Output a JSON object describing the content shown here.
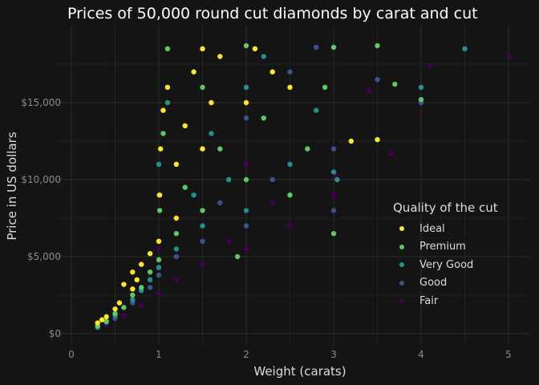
{
  "chart_data": {
    "type": "scatter",
    "title": "Prices of 50,000 round cut diamonds by carat and cut",
    "xlabel": "Weight (carats)",
    "ylabel": "Price in US dollars",
    "xlim": [
      -0.2,
      5.2
    ],
    "ylim": [
      -800,
      20000
    ],
    "x_ticks": [
      0,
      1,
      2,
      3,
      4,
      5
    ],
    "x_tick_labels": [
      "0",
      "1",
      "2",
      "3",
      "4",
      "5"
    ],
    "y_ticks": [
      0,
      5000,
      10000,
      15000
    ],
    "y_tick_labels": [
      "$0",
      "$5,000",
      "$10,000",
      "$15,000"
    ],
    "grid": true,
    "legend": {
      "title": "Quality of the cut",
      "placement": "right-inside"
    },
    "series": [
      {
        "name": "Fair",
        "color": "#440154",
        "points": [
          [
            0.4,
            600
          ],
          [
            0.6,
            1200
          ],
          [
            0.8,
            1800
          ],
          [
            1.0,
            2600
          ],
          [
            1.0,
            5500
          ],
          [
            1.2,
            3500
          ],
          [
            1.5,
            4500
          ],
          [
            1.5,
            8000
          ],
          [
            1.8,
            6000
          ],
          [
            2.0,
            5500
          ],
          [
            2.0,
            11000
          ],
          [
            2.3,
            8500
          ],
          [
            2.5,
            7000
          ],
          [
            3.0,
            9000
          ],
          [
            3.02,
            10300
          ],
          [
            3.4,
            15800
          ],
          [
            3.65,
            11700
          ],
          [
            4.1,
            17400
          ],
          [
            4.5,
            18500
          ],
          [
            5.01,
            18000
          ]
        ]
      },
      {
        "name": "Good",
        "color": "#3b528b",
        "points": [
          [
            0.3,
            400
          ],
          [
            0.5,
            1000
          ],
          [
            0.7,
            2000
          ],
          [
            0.9,
            3000
          ],
          [
            1.0,
            3800
          ],
          [
            1.0,
            9000
          ],
          [
            1.2,
            5000
          ],
          [
            1.5,
            6000
          ],
          [
            1.5,
            12000
          ],
          [
            1.7,
            8500
          ],
          [
            2.0,
            7000
          ],
          [
            2.0,
            14000
          ],
          [
            2.3,
            10000
          ],
          [
            2.5,
            17000
          ],
          [
            2.8,
            18600
          ],
          [
            3.0,
            8000
          ],
          [
            3.0,
            12000
          ],
          [
            3.5,
            16500
          ],
          [
            4.0,
            15000
          ]
        ]
      },
      {
        "name": "Very Good",
        "color": "#21918c",
        "points": [
          [
            0.3,
            450
          ],
          [
            0.4,
            750
          ],
          [
            0.5,
            1200
          ],
          [
            0.7,
            2200
          ],
          [
            0.8,
            2800
          ],
          [
            0.9,
            3500
          ],
          [
            1.0,
            4300
          ],
          [
            1.0,
            11000
          ],
          [
            1.1,
            15000
          ],
          [
            1.2,
            5500
          ],
          [
            1.4,
            9000
          ],
          [
            1.5,
            7000
          ],
          [
            1.6,
            13000
          ],
          [
            1.8,
            10000
          ],
          [
            2.0,
            8000
          ],
          [
            2.0,
            16000
          ],
          [
            2.2,
            18000
          ],
          [
            2.5,
            11000
          ],
          [
            2.8,
            14500
          ],
          [
            3.0,
            10500
          ],
          [
            3.04,
            10000
          ],
          [
            4.0,
            16000
          ],
          [
            4.5,
            18500
          ]
        ]
      },
      {
        "name": "Premium",
        "color": "#5ec962",
        "points": [
          [
            0.3,
            500
          ],
          [
            0.4,
            800
          ],
          [
            0.5,
            1300
          ],
          [
            0.6,
            1700
          ],
          [
            0.7,
            2500
          ],
          [
            0.8,
            3000
          ],
          [
            0.9,
            4000
          ],
          [
            1.0,
            4800
          ],
          [
            1.01,
            8000
          ],
          [
            1.05,
            13000
          ],
          [
            1.1,
            18500
          ],
          [
            1.2,
            6500
          ],
          [
            1.3,
            9500
          ],
          [
            1.5,
            8000
          ],
          [
            1.5,
            16000
          ],
          [
            1.7,
            12000
          ],
          [
            1.9,
            5000
          ],
          [
            2.0,
            10000
          ],
          [
            2.0,
            18700
          ],
          [
            2.2,
            14000
          ],
          [
            2.5,
            9000
          ],
          [
            2.7,
            12000
          ],
          [
            2.9,
            16000
          ],
          [
            3.0,
            6500
          ],
          [
            3.0,
            18600
          ],
          [
            3.5,
            18700
          ],
          [
            3.7,
            16200
          ],
          [
            4.0,
            15200
          ]
        ]
      },
      {
        "name": "Ideal",
        "color": "#fde725",
        "points": [
          [
            0.3,
            700
          ],
          [
            0.35,
            900
          ],
          [
            0.4,
            1100
          ],
          [
            0.5,
            1600
          ],
          [
            0.55,
            2000
          ],
          [
            0.6,
            3200
          ],
          [
            0.7,
            2900
          ],
          [
            0.7,
            4000
          ],
          [
            0.75,
            3500
          ],
          [
            0.8,
            4500
          ],
          [
            0.9,
            5200
          ],
          [
            1.0,
            6000
          ],
          [
            1.01,
            9000
          ],
          [
            1.02,
            12000
          ],
          [
            1.05,
            14500
          ],
          [
            1.1,
            16000
          ],
          [
            1.2,
            7500
          ],
          [
            1.2,
            11000
          ],
          [
            1.3,
            13500
          ],
          [
            1.4,
            17000
          ],
          [
            1.5,
            12000
          ],
          [
            1.5,
            18500
          ],
          [
            1.6,
            15000
          ],
          [
            1.7,
            18000
          ],
          [
            2.0,
            15000
          ],
          [
            2.1,
            18500
          ],
          [
            2.3,
            17000
          ],
          [
            2.5,
            16000
          ],
          [
            3.2,
            12500
          ],
          [
            3.5,
            12600
          ]
        ]
      }
    ],
    "legend_order": [
      "Ideal",
      "Premium",
      "Very Good",
      "Good",
      "Fair"
    ]
  }
}
